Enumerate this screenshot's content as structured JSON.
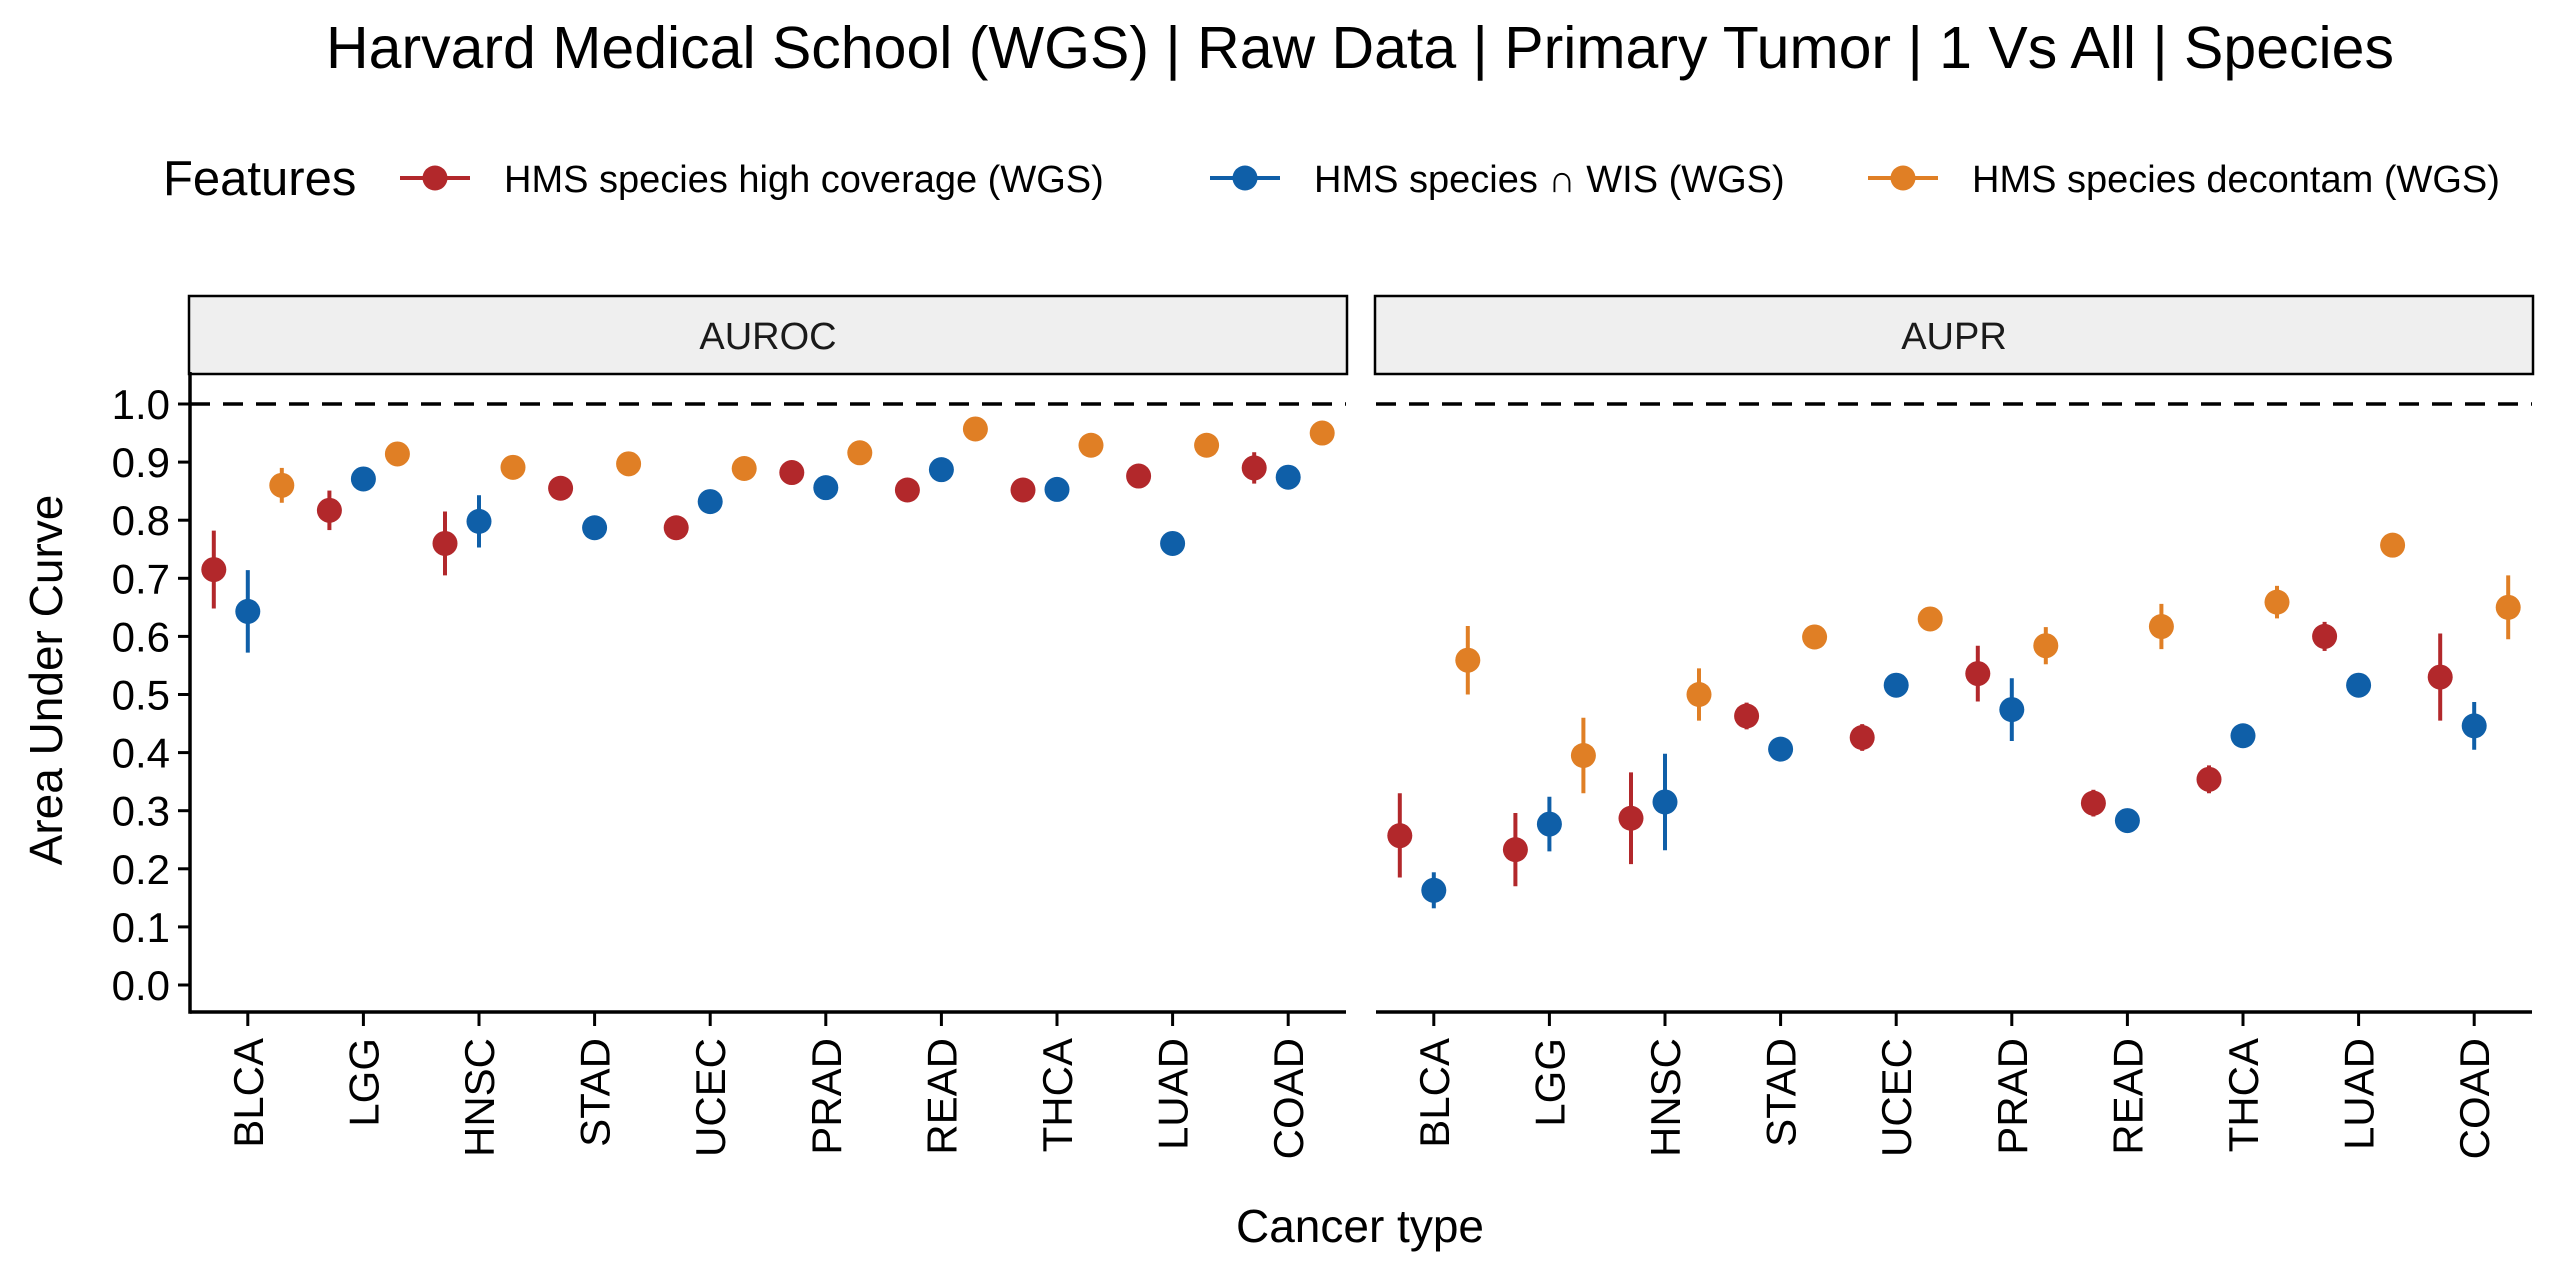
{
  "chart_data": {
    "type": "scatter",
    "title": "Harvard Medical School (WGS) | Raw Data | Primary Tumor | 1 Vs All | Species",
    "xlabel": "Cancer type",
    "ylabel": "Area Under Curve",
    "ylim": [
      0,
      1
    ],
    "yticks": [
      "0.0",
      "0.1",
      "0.2",
      "0.3",
      "0.4",
      "0.5",
      "0.6",
      "0.7",
      "0.8",
      "0.9",
      "1.0"
    ],
    "reference_line": 1.0,
    "legend": {
      "title": "Features",
      "position": "top"
    },
    "categories": [
      "BLCA",
      "LGG",
      "HNSC",
      "STAD",
      "UCEC",
      "PRAD",
      "READ",
      "THCA",
      "LUAD",
      "COAD"
    ],
    "series_styles": [
      {
        "name": "HMS species high coverage (WGS)",
        "color": "#B2282B"
      },
      {
        "name": "HMS species ∩ WIS (WGS)",
        "color": "#0F5FA8"
      },
      {
        "name": "HMS species decontam (WGS)",
        "color": "#E07F25"
      }
    ],
    "panels": [
      {
        "label": "AUROC",
        "series": [
          {
            "name": "HMS species high coverage (WGS)",
            "values": [
              0.715,
              0.817,
              0.76,
              0.855,
              0.787,
              0.882,
              0.852,
              0.852,
              0.876,
              0.89
            ],
            "lower": [
              0.648,
              0.783,
              0.705,
              0.85,
              0.78,
              0.876,
              0.846,
              0.846,
              0.87,
              0.863
            ],
            "upper": [
              0.782,
              0.851,
              0.815,
              0.86,
              0.794,
              0.888,
              0.858,
              0.858,
              0.882,
              0.917
            ]
          },
          {
            "name": "HMS species ∩ WIS (WGS)",
            "values": [
              0.643,
              0.871,
              0.798,
              0.787,
              0.832,
              0.856,
              0.887,
              0.853,
              0.76,
              0.874
            ],
            "lower": [
              0.572,
              0.865,
              0.753,
              0.781,
              0.826,
              0.85,
              0.881,
              0.847,
              0.754,
              0.868
            ],
            "upper": [
              0.714,
              0.877,
              0.843,
              0.793,
              0.838,
              0.862,
              0.893,
              0.859,
              0.766,
              0.88
            ]
          },
          {
            "name": "HMS species decontam (WGS)",
            "values": [
              0.86,
              0.914,
              0.891,
              0.897,
              0.889,
              0.916,
              0.957,
              0.929,
              0.929,
              0.95
            ],
            "lower": [
              0.83,
              0.908,
              0.885,
              0.891,
              0.883,
              0.91,
              0.951,
              0.923,
              0.923,
              0.944
            ],
            "upper": [
              0.89,
              0.92,
              0.897,
              0.903,
              0.895,
              0.922,
              0.963,
              0.935,
              0.935,
              0.956
            ]
          }
        ]
      },
      {
        "label": "AUPR",
        "series": [
          {
            "name": "HMS species high coverage (WGS)",
            "values": [
              0.257,
              0.233,
              0.287,
              0.463,
              0.426,
              0.536,
              0.313,
              0.354,
              0.6,
              0.53
            ],
            "lower": [
              0.185,
              0.17,
              0.208,
              0.44,
              0.403,
              0.488,
              0.29,
              0.33,
              0.575,
              0.455
            ],
            "upper": [
              0.33,
              0.296,
              0.366,
              0.486,
              0.449,
              0.584,
              0.336,
              0.378,
              0.625,
              0.605
            ]
          },
          {
            "name": "HMS species ∩ WIS (WGS)",
            "values": [
              0.163,
              0.277,
              0.315,
              0.406,
              0.516,
              0.474,
              0.283,
              0.429,
              0.516,
              0.446
            ],
            "lower": [
              0.132,
              0.23,
              0.232,
              0.4,
              0.51,
              0.42,
              0.277,
              0.423,
              0.51,
              0.405
            ],
            "upper": [
              0.194,
              0.324,
              0.398,
              0.412,
              0.522,
              0.528,
              0.289,
              0.435,
              0.522,
              0.487
            ]
          },
          {
            "name": "HMS species decontam (WGS)",
            "values": [
              0.559,
              0.395,
              0.5,
              0.599,
              0.63,
              0.584,
              0.617,
              0.659,
              0.757,
              0.65
            ],
            "lower": [
              0.5,
              0.33,
              0.455,
              0.578,
              0.624,
              0.552,
              0.578,
              0.631,
              0.751,
              0.595
            ],
            "upper": [
              0.618,
              0.46,
              0.545,
              0.62,
              0.636,
              0.616,
              0.656,
              0.687,
              0.763,
              0.705
            ]
          }
        ]
      }
    ]
  }
}
